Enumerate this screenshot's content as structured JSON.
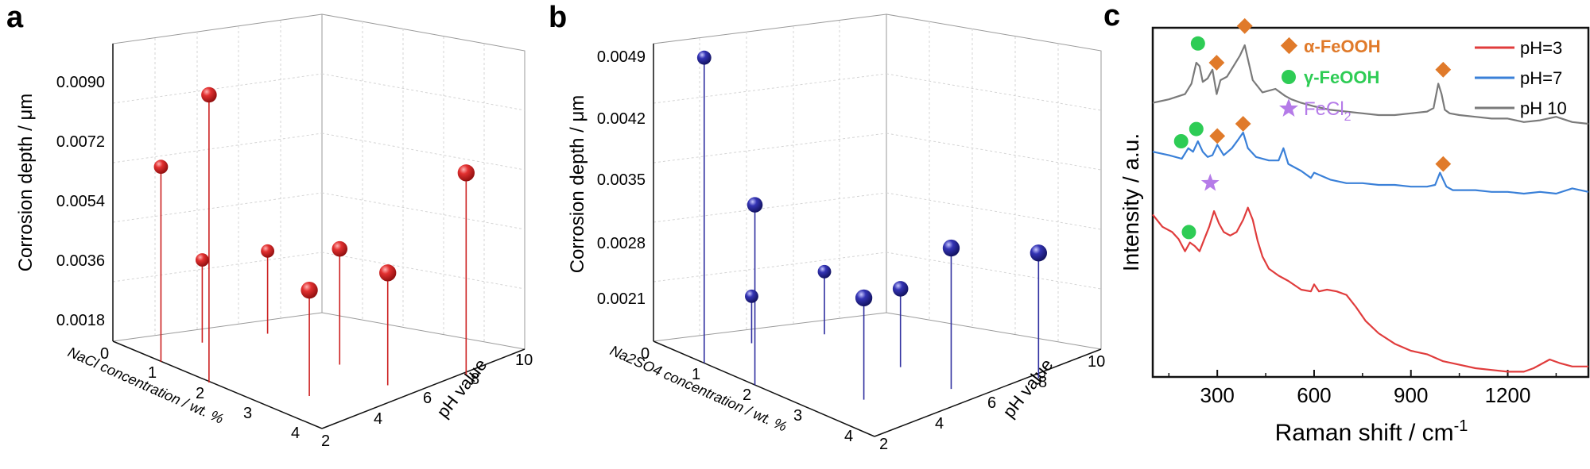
{
  "panel_labels": [
    "a",
    "b",
    "c"
  ],
  "colors": {
    "red_sphere": "#d21f1f",
    "blue_sphere": "#2a2a9a",
    "ph3": "#e03c3c",
    "ph7": "#3a80d8",
    "ph10": "#7a7a7a",
    "alpha": "#e07a2a",
    "gamma": "#2ecc55",
    "fecl2": "#b57be8"
  },
  "chart_data": [
    {
      "type": "scatter",
      "panel": "a",
      "zlabel": "Corrosion depth / μm",
      "xlabel": "NaCl concentration / wt. %",
      "ylabel": "pH value",
      "z_ticks": [
        "0.0018",
        "0.0036",
        "0.0054",
        "0.0072",
        "0.0090"
      ],
      "x_ticks": [
        "0",
        "1",
        "2",
        "3",
        "4"
      ],
      "y_ticks": [
        "2",
        "4",
        "6",
        "8",
        "10"
      ],
      "zlim": [
        0.0009,
        0.0099
      ],
      "xlim": [
        0,
        4.5
      ],
      "ylim": [
        2,
        10
      ],
      "points": [
        {
          "x": 1.0,
          "y": 2.0,
          "z": 0.0068
        },
        {
          "x": 2.0,
          "y": 2.0,
          "z": 0.0096
        },
        {
          "x": 0.5,
          "y": 4.5,
          "z": 0.0034
        },
        {
          "x": 0.5,
          "y": 7.0,
          "z": 0.0034
        },
        {
          "x": 2.0,
          "y": 7.0,
          "z": 0.0044
        },
        {
          "x": 3.0,
          "y": 4.0,
          "z": 0.0041
        },
        {
          "x": 3.0,
          "y": 7.0,
          "z": 0.0043
        },
        {
          "x": 3.0,
          "y": 10.0,
          "z": 0.007
        }
      ]
    },
    {
      "type": "scatter",
      "panel": "b",
      "zlabel": "Corrosion depth / μm",
      "xlabel": "Na2SO4 concentration / wt. %",
      "ylabel": "pH value",
      "z_ticks": [
        "0.0021",
        "0.0028",
        "0.0035",
        "0.0042",
        "0.0049"
      ],
      "x_ticks": [
        "0",
        "1",
        "2",
        "3",
        "4"
      ],
      "y_ticks": [
        "2",
        "4",
        "6",
        "8",
        "10"
      ],
      "zlim": [
        0.0014,
        0.0052
      ],
      "xlim": [
        0,
        4.5
      ],
      "ylim": [
        2,
        10
      ],
      "points": [
        {
          "x": 1.0,
          "y": 2.0,
          "z": 0.0053
        },
        {
          "x": 2.0,
          "y": 2.0,
          "z": 0.0037
        },
        {
          "x": 0.5,
          "y": 4.5,
          "z": 0.002
        },
        {
          "x": 0.5,
          "y": 7.0,
          "z": 0.0022
        },
        {
          "x": 2.0,
          "y": 7.0,
          "z": 0.0024
        },
        {
          "x": 3.0,
          "y": 4.0,
          "z": 0.0027
        },
        {
          "x": 3.0,
          "y": 7.0,
          "z": 0.0032
        },
        {
          "x": 3.0,
          "y": 10.0,
          "z": 0.003
        }
      ]
    },
    {
      "type": "line",
      "panel": "c",
      "xlabel": "Raman shift / cm",
      "xlabel_sup": "-1",
      "ylabel": "Intensity / a.u.",
      "x_ticks": [
        300,
        600,
        900,
        1200
      ],
      "xlim": [
        100,
        1450
      ],
      "ylim": [
        0,
        10
      ],
      "legend": [
        {
          "name": "pH=3",
          "color": "#e03c3c"
        },
        {
          "name": "pH=7",
          "color": "#3a80d8"
        },
        {
          "name": "pH 10",
          "color": "#7a7a7a"
        }
      ],
      "marker_legend": [
        {
          "symbol": "diamond",
          "label": "α-FeOOH",
          "color": "#e07a2a"
        },
        {
          "symbol": "circle",
          "label": "γ-FeOOH",
          "color": "#2ecc55"
        },
        {
          "symbol": "star",
          "label": "FeCl",
          "sub": "2",
          "color": "#b57be8"
        }
      ],
      "series": [
        {
          "name": "pH 10",
          "color": "#7a7a7a",
          "x": [
            100,
            150,
            200,
            220,
            235,
            245,
            255,
            270,
            285,
            298,
            310,
            330,
            350,
            370,
            385,
            395,
            410,
            440,
            480,
            510,
            530,
            560,
            600,
            650,
            700,
            750,
            800,
            850,
            900,
            950,
            970,
            985,
            995,
            1005,
            1020,
            1050,
            1100,
            1150,
            1200,
            1250,
            1300,
            1350,
            1400,
            1450
          ],
          "y": [
            7.85,
            7.95,
            8.1,
            8.4,
            9.0,
            8.9,
            8.45,
            8.55,
            8.8,
            8.1,
            8.5,
            8.6,
            8.9,
            9.2,
            9.5,
            9.1,
            8.5,
            8.15,
            8.25,
            8.05,
            7.95,
            7.85,
            7.75,
            7.65,
            7.6,
            7.55,
            7.5,
            7.5,
            7.55,
            7.6,
            7.7,
            8.4,
            8.1,
            7.65,
            7.55,
            7.5,
            7.45,
            7.4,
            7.4,
            7.3,
            7.35,
            7.45,
            7.3,
            7.25
          ]
        },
        {
          "name": "pH=7",
          "color": "#3a80d8",
          "x": [
            100,
            150,
            190,
            210,
            225,
            240,
            255,
            270,
            285,
            300,
            320,
            345,
            365,
            380,
            395,
            420,
            460,
            490,
            505,
            520,
            560,
            590,
            600,
            650,
            700,
            750,
            800,
            850,
            900,
            950,
            975,
            990,
            1000,
            1010,
            1030,
            1100,
            1150,
            1200,
            1250,
            1300,
            1350,
            1400,
            1450
          ],
          "y": [
            6.45,
            6.35,
            6.25,
            6.55,
            6.45,
            6.75,
            6.45,
            6.3,
            6.35,
            6.65,
            6.35,
            6.55,
            6.8,
            7.0,
            6.55,
            6.3,
            6.2,
            6.2,
            6.55,
            6.1,
            5.9,
            5.7,
            5.85,
            5.65,
            5.55,
            5.55,
            5.5,
            5.5,
            5.45,
            5.45,
            5.5,
            5.85,
            5.65,
            5.45,
            5.35,
            5.35,
            5.3,
            5.3,
            5.25,
            5.3,
            5.25,
            5.4,
            5.3
          ]
        },
        {
          "name": "pH=3",
          "color": "#e03c3c",
          "x": [
            100,
            130,
            160,
            180,
            200,
            215,
            230,
            245,
            260,
            275,
            290,
            305,
            320,
            340,
            360,
            380,
            395,
            410,
            425,
            440,
            460,
            490,
            520,
            560,
            590,
            600,
            615,
            640,
            670,
            700,
            730,
            760,
            800,
            850,
            900,
            950,
            1000,
            1050,
            1100,
            1150,
            1200,
            1250,
            1280,
            1300,
            1330,
            1360,
            1400,
            1450
          ],
          "y": [
            4.65,
            4.3,
            4.15,
            3.95,
            3.6,
            3.85,
            3.75,
            3.6,
            3.95,
            4.3,
            4.75,
            4.4,
            4.15,
            4.05,
            4.15,
            4.5,
            4.85,
            4.5,
            3.9,
            3.45,
            3.1,
            2.9,
            2.75,
            2.5,
            2.45,
            2.65,
            2.45,
            2.5,
            2.45,
            2.35,
            2.0,
            1.6,
            1.25,
            0.95,
            0.75,
            0.65,
            0.45,
            0.35,
            0.25,
            0.2,
            0.15,
            0.15,
            0.25,
            0.35,
            0.5,
            0.4,
            0.3,
            0.3
          ]
        }
      ],
      "peak_markers": [
        {
          "symbol": "circle",
          "x": 240,
          "y": 9.55
        },
        {
          "symbol": "diamond",
          "x": 298,
          "y": 9.0
        },
        {
          "symbol": "diamond",
          "x": 385,
          "y": 10.05
        },
        {
          "symbol": "diamond",
          "x": 1000,
          "y": 8.8
        },
        {
          "symbol": "circle",
          "x": 188,
          "y": 6.75
        },
        {
          "symbol": "circle",
          "x": 235,
          "y": 7.1
        },
        {
          "symbol": "diamond",
          "x": 300,
          "y": 6.9
        },
        {
          "symbol": "diamond",
          "x": 380,
          "y": 7.25
        },
        {
          "symbol": "diamond",
          "x": 1000,
          "y": 6.1
        },
        {
          "symbol": "star",
          "x": 278,
          "y": 5.55
        },
        {
          "symbol": "circle",
          "x": 212,
          "y": 4.15
        }
      ]
    }
  ]
}
